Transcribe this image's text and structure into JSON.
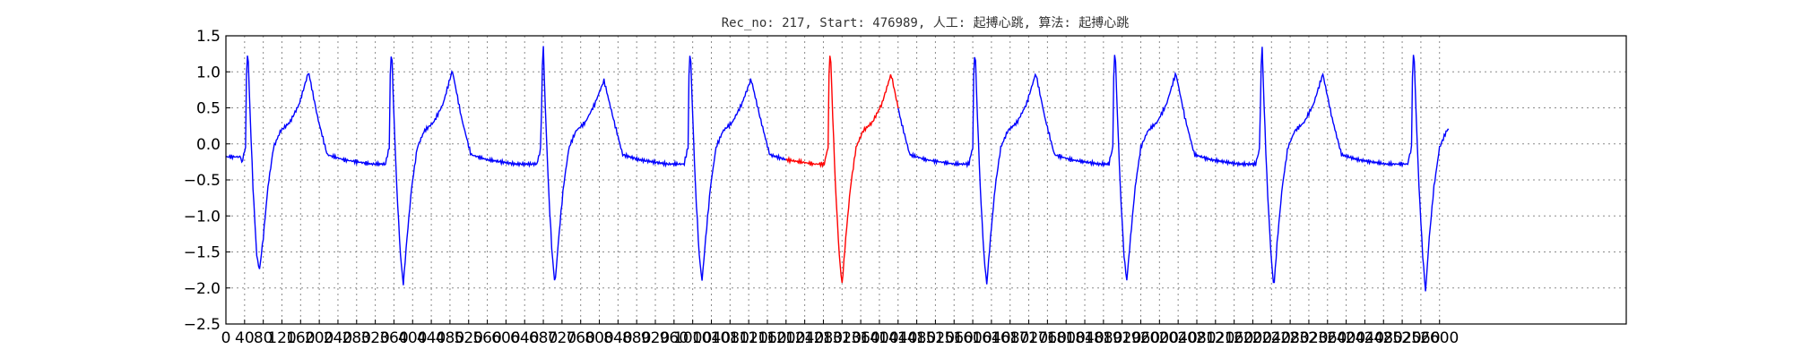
{
  "chart_data": {
    "type": "line",
    "title": "Rec_no: 217, Start: 476989, 人工: 起搏心跳, 算法: 起搏心跳",
    "xlabel": "",
    "ylabel": "",
    "xlim": [
      0,
      3000
    ],
    "ylim": [
      -2.5,
      1.5
    ],
    "x_ticks": [
      0,
      40,
      80,
      120,
      160,
      200,
      240,
      280,
      320,
      360,
      400,
      440,
      480,
      520,
      560,
      600,
      640,
      680,
      720,
      760,
      800,
      840,
      880,
      920,
      960,
      1000,
      1040,
      1080,
      1120,
      1160,
      1200,
      1240,
      1280,
      1320,
      1360,
      1400,
      1440,
      1480,
      1520,
      1560,
      1600,
      1640,
      1680,
      1720,
      1760,
      1800,
      1840,
      1880,
      1920,
      1960,
      2000,
      2040,
      2080,
      2120,
      2160,
      2200,
      2240,
      2280,
      2320,
      2360,
      2400,
      2440,
      2480,
      2520,
      2560,
      2600
    ],
    "x_tick_labels": [
      "0",
      "40",
      "80",
      "120",
      "160",
      "200",
      "240",
      "280",
      "320",
      "360",
      "400",
      "440",
      "480",
      "520",
      "560",
      "600",
      "640",
      "680",
      "720",
      "760",
      "800",
      "840",
      "880",
      "920",
      "960",
      "1000",
      "1040",
      "1080",
      "1120",
      "1160",
      "1200",
      "1240",
      "1280",
      "1320",
      "1360",
      "1400",
      "1440",
      "1480",
      "1520",
      "1560",
      "1600",
      "1640",
      "1680",
      "1720",
      "1760",
      "1800",
      "1840",
      "1880",
      "1920",
      "1960",
      "2000",
      "2040",
      "2080",
      "2120",
      "2160",
      "2200",
      "2240",
      "2280",
      "2320",
      "2360",
      "2400",
      "2440",
      "2480",
      "2520",
      "2560",
      "2600"
    ],
    "y_ticks": [
      1.5,
      1.0,
      0.5,
      0.0,
      -0.5,
      -1.0,
      -1.5,
      -2.0,
      -2.5
    ],
    "y_tick_labels": [
      "1.5",
      "1.0",
      "0.5",
      "0.0",
      "−0.5",
      "−1.0",
      "−1.5",
      "−2.0",
      "−2.5"
    ],
    "grid": true,
    "signal_start_x": 0,
    "signal_end_x": 2620,
    "highlight_range_x": [
      1200,
      1440
    ],
    "beat_spike_x": [
      42,
      350,
      675,
      990,
      1290,
      1600,
      1900,
      2215,
      2540
    ],
    "beat_trough_y": [
      -1.75,
      -1.95,
      -1.95,
      -1.9,
      -1.95,
      -1.95,
      -1.9,
      -2.0,
      -2.05
    ],
    "beat_t_wave_y": [
      1.0,
      1.02,
      0.88,
      0.9,
      0.97,
      0.98,
      0.98,
      0.97,
      0.95
    ],
    "baseline_y": -0.28,
    "series": [
      {
        "color": "#0000ff"
      },
      {
        "color": "#ff0000"
      }
    ]
  }
}
